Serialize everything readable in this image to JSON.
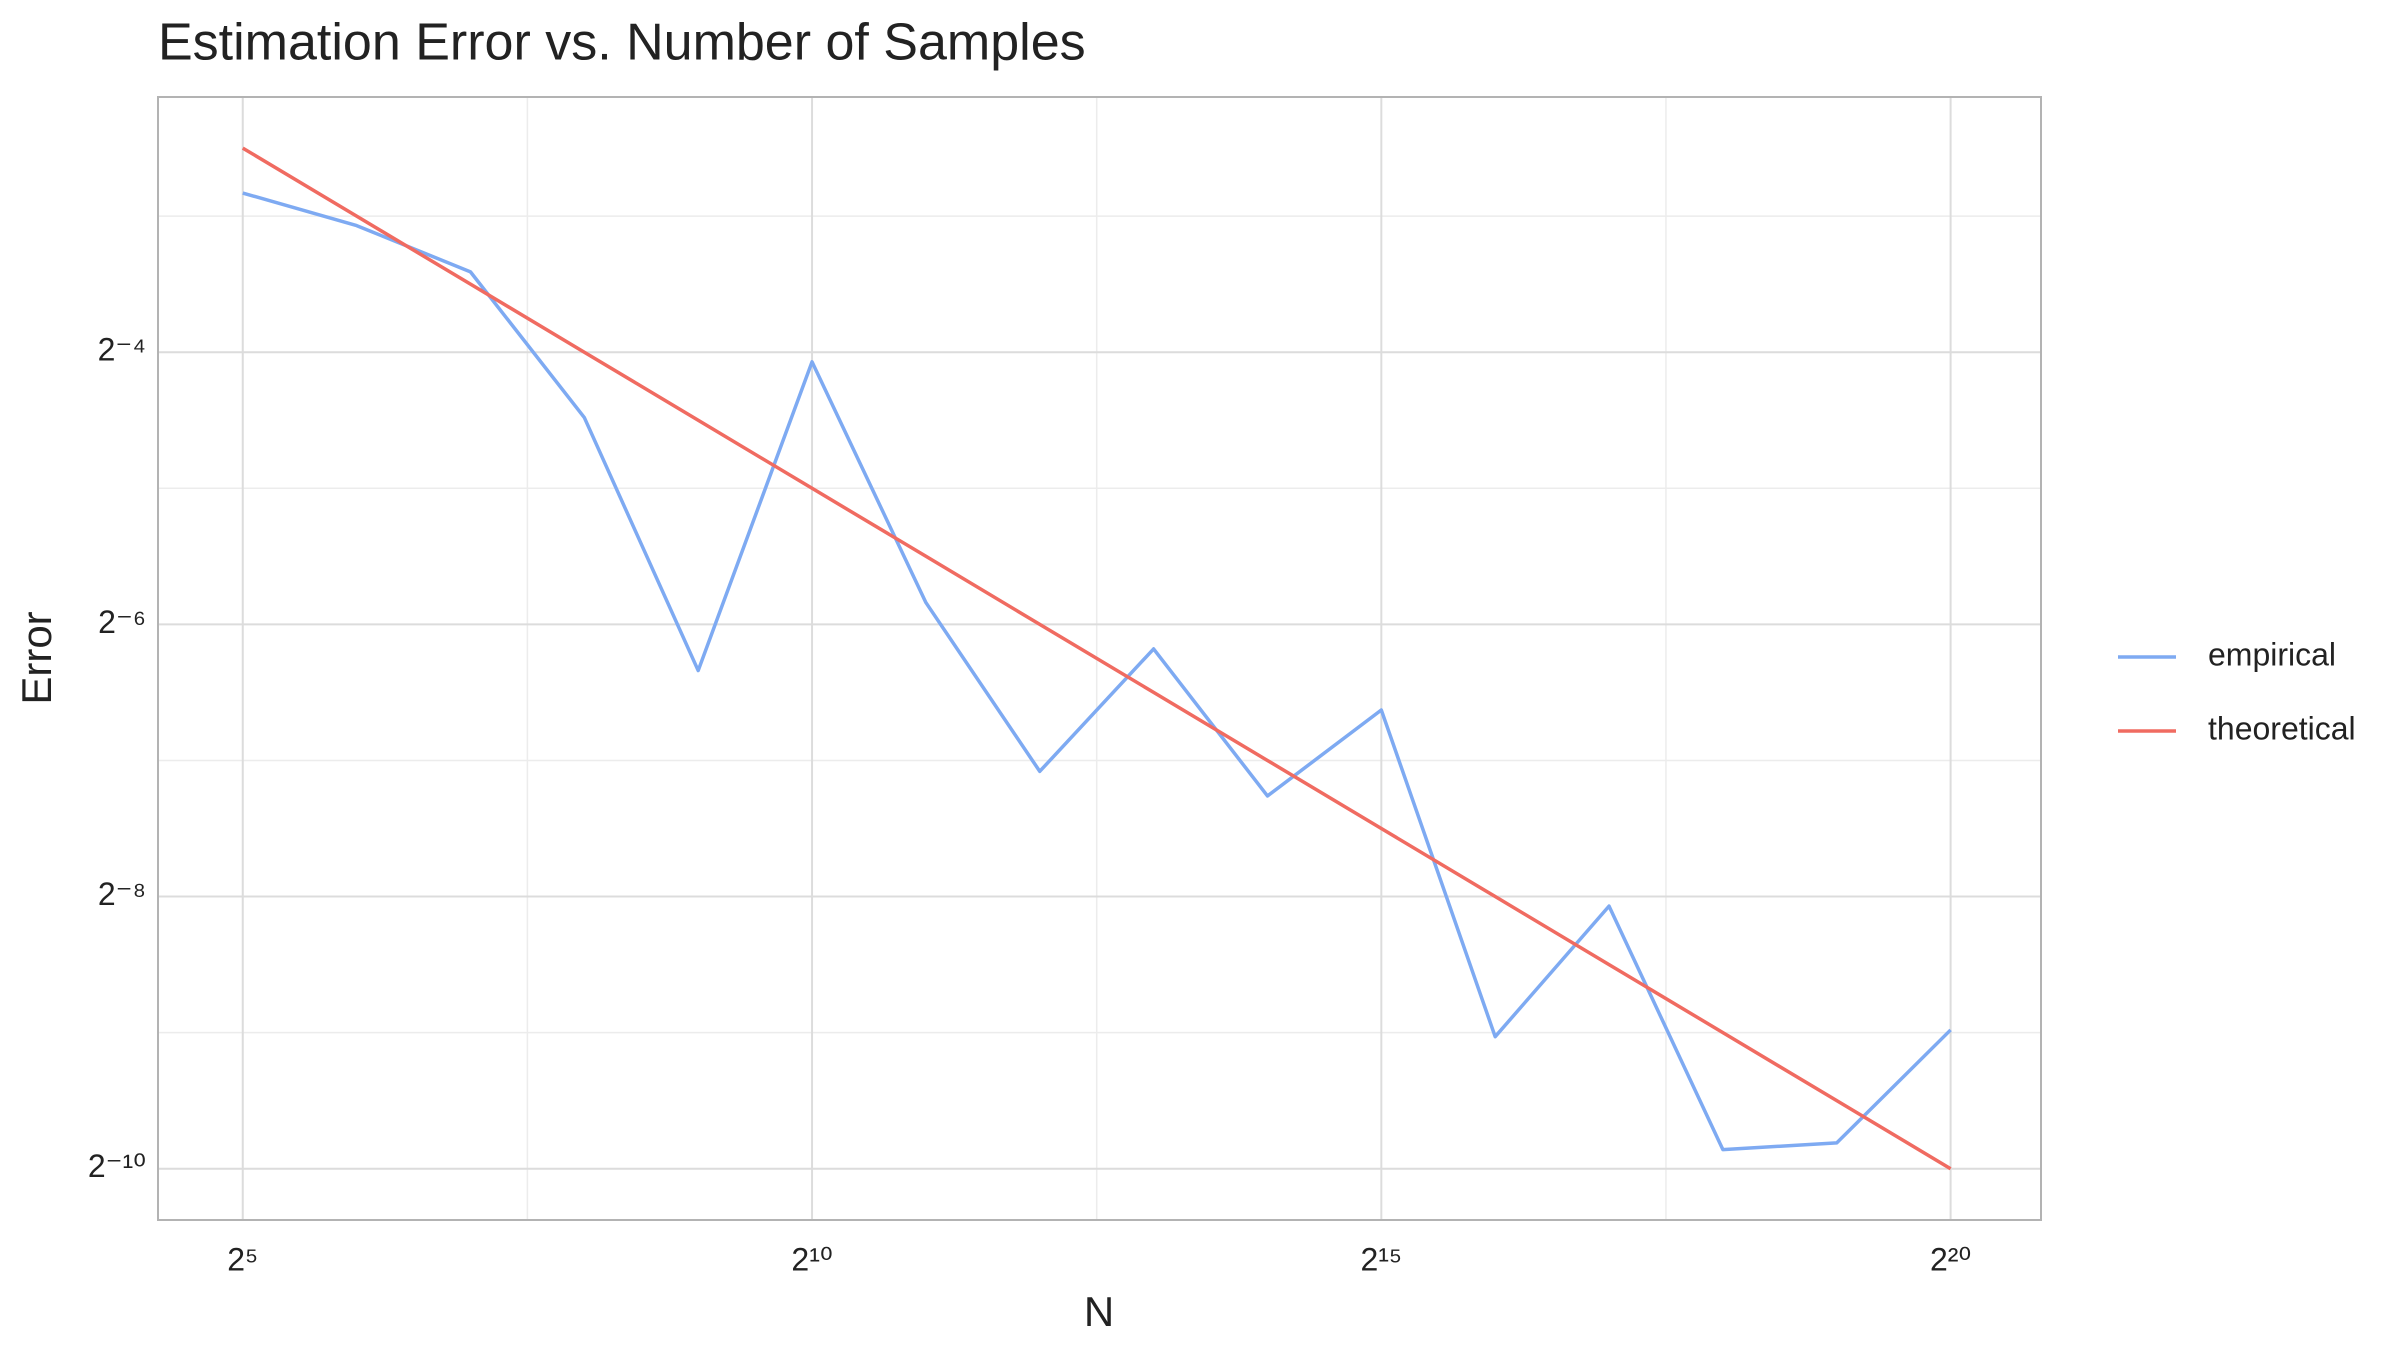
{
  "chart_data": {
    "type": "line",
    "title": "Estimation Error vs. Number of Samples",
    "x_label": "N",
    "y_label": "Error",
    "log_x": true,
    "log_y": true,
    "log_base": 2,
    "grid": true,
    "legend_position": "right",
    "x": [
      32,
      64,
      128,
      256,
      512,
      1024,
      2048,
      4096,
      8192,
      16384,
      32768,
      65536,
      131072,
      262144,
      524288,
      1048576
    ],
    "series": [
      {
        "name": "empirical",
        "color": "#7eaaf2",
        "values": [
          0.1406,
          0.1191,
          0.0941,
          0.0448,
          0.01235,
          0.0595,
          0.01746,
          0.00739,
          0.01379,
          0.00652,
          0.0101,
          0.001913,
          0.00372,
          0.001076,
          0.001114,
          0.00198
        ]
      },
      {
        "name": "theoretical",
        "color": "#f06b61",
        "values": [
          0.17678,
          0.125,
          0.08839,
          0.0625,
          0.04419,
          0.03125,
          0.0221,
          0.015625,
          0.01105,
          0.0078125,
          0.005524,
          0.003906,
          0.002762,
          0.001953,
          0.001381,
          0.0009766
        ]
      }
    ],
    "xlim": [
      19.1,
      1818000
    ],
    "ylim": [
      0.000752,
      0.2293
    ],
    "xticks": [
      {
        "value": 32,
        "label": "2⁵"
      },
      {
        "value": 1024,
        "label": "2¹⁰"
      },
      {
        "value": 32768,
        "label": "2¹⁵"
      },
      {
        "value": 1048576,
        "label": "2²⁰"
      }
    ],
    "yticks": [
      {
        "value": 0.0625,
        "label": "2⁻⁴"
      },
      {
        "value": 0.015625,
        "label": "2⁻⁶"
      },
      {
        "value": 0.00390625,
        "label": "2⁻⁸"
      },
      {
        "value": 0.0009765625,
        "label": "2⁻¹⁰"
      }
    ],
    "x_minor_grid": [
      181.02,
      5792.6,
      185364
    ],
    "y_minor_grid": [
      0.125,
      0.03125,
      0.0078125,
      0.001953125
    ]
  }
}
